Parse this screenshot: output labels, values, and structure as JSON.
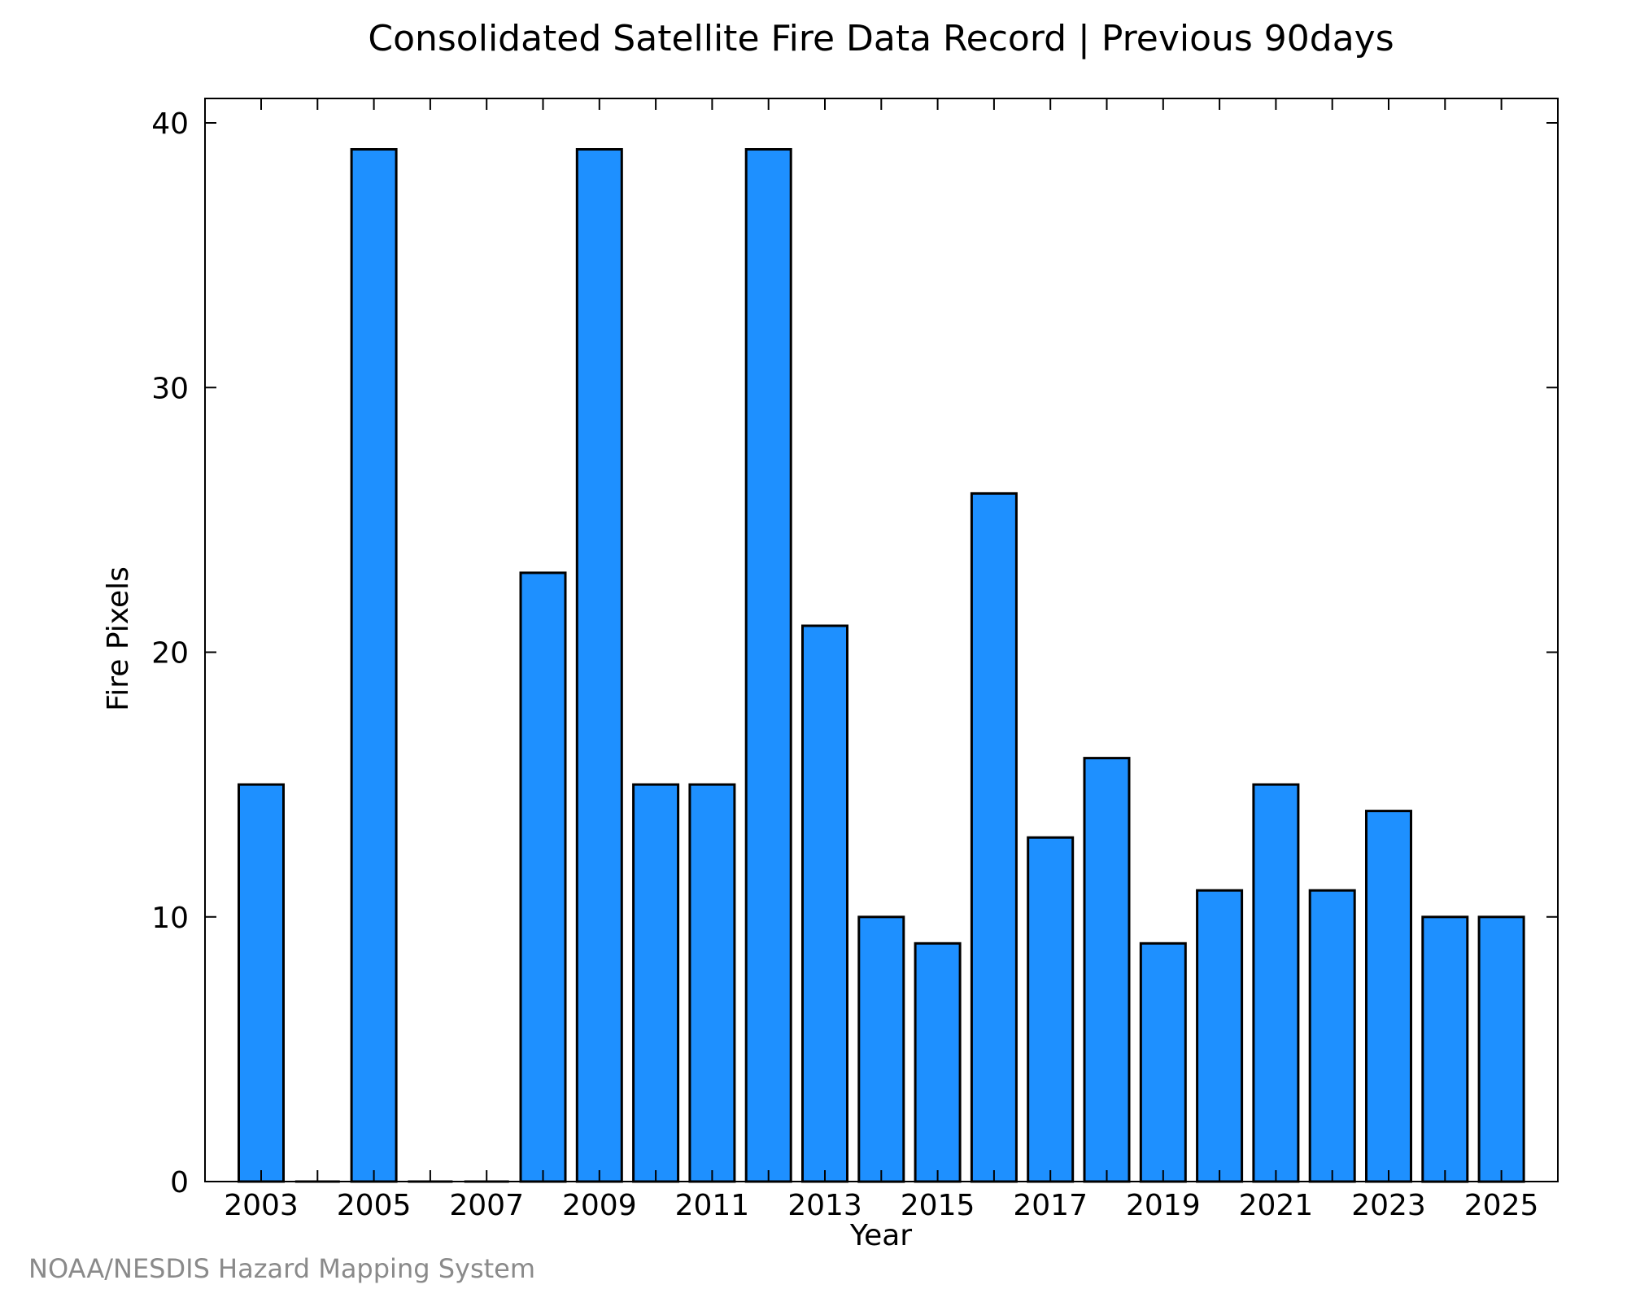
{
  "chart_data": {
    "type": "bar",
    "title": "Consolidated Satellite Fire Data Record | Previous 90days",
    "xlabel": "Year",
    "ylabel": "Fire Pixels",
    "categories": [
      2003,
      2004,
      2005,
      2006,
      2007,
      2008,
      2009,
      2010,
      2011,
      2012,
      2013,
      2014,
      2015,
      2016,
      2017,
      2018,
      2019,
      2020,
      2021,
      2022,
      2023,
      2024,
      2025
    ],
    "values": [
      15,
      0,
      39,
      0,
      0,
      23,
      39,
      15,
      15,
      39,
      21,
      10,
      9,
      26,
      13,
      16,
      9,
      11,
      15,
      11,
      14,
      10,
      10
    ],
    "ylim": [
      0,
      40
    ],
    "yticks": [
      0,
      10,
      20,
      30,
      40
    ],
    "xticks": [
      2003,
      2005,
      2007,
      2009,
      2011,
      2013,
      2015,
      2017,
      2019,
      2021,
      2023,
      2025
    ],
    "grid": false,
    "bar_color": "#1e90ff",
    "edge_color": "#000000"
  },
  "footer": {
    "credit": "NOAA/NESDIS Hazard Mapping System"
  }
}
